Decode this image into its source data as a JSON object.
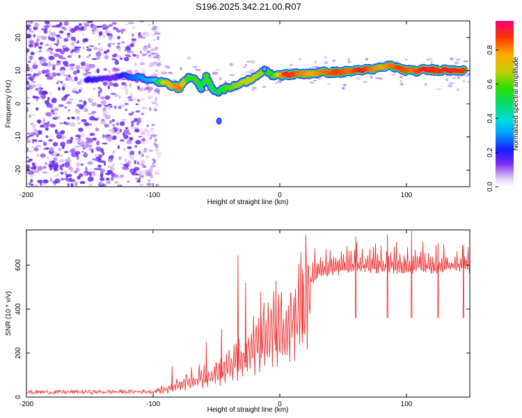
{
  "title": "S196.2025.342.21.00.R07",
  "chart_data": [
    {
      "type": "heatmap",
      "xlabel": "Height of straight line (km)",
      "ylabel": "Frequency (Hz)",
      "xlim": [
        -200,
        150
      ],
      "ylim": [
        -25,
        25
      ],
      "xticks": [
        -200,
        -100,
        0,
        100
      ],
      "xtick_labels": [
        "-200",
        "-100",
        "0",
        "100"
      ],
      "yticks": [
        -20,
        -10,
        0,
        10,
        20
      ],
      "ytick_labels": [
        "-20",
        "-10",
        "0",
        "10",
        "20"
      ],
      "colorbar": {
        "label": "Normalized spectral amplitude",
        "range": [
          0,
          0.97
        ],
        "ticks": [
          0.0,
          0.2,
          0.4,
          0.6,
          0.8
        ],
        "tick_labels": [
          "0.0",
          "0.2",
          "0.4",
          "0.6",
          "0.8"
        ]
      },
      "ridge": [
        {
          "x": -152,
          "f": 7.5,
          "a": 0.22
        },
        {
          "x": -145,
          "f": 7.2,
          "a": 0.2
        },
        {
          "x": -130,
          "f": 8.0,
          "a": 0.15
        },
        {
          "x": -122,
          "f": 8.5,
          "a": 0.25
        },
        {
          "x": -112,
          "f": 8.0,
          "a": 0.3
        },
        {
          "x": -100,
          "f": 7.0,
          "a": 0.35
        },
        {
          "x": -92,
          "f": 6.5,
          "a": 0.7
        },
        {
          "x": -85,
          "f": 5.5,
          "a": 0.8
        },
        {
          "x": -79,
          "f": 4.8,
          "a": 0.85
        },
        {
          "x": -72,
          "f": 8.0,
          "a": 0.55
        },
        {
          "x": -66,
          "f": 7.0,
          "a": 0.6
        },
        {
          "x": -62,
          "f": 4.5,
          "a": 0.5
        },
        {
          "x": -58,
          "f": 8.5,
          "a": 0.6
        },
        {
          "x": -54,
          "f": 5.0,
          "a": 0.55
        },
        {
          "x": -50,
          "f": 3.5,
          "a": 0.5
        },
        {
          "x": -44,
          "f": 4.5,
          "a": 0.6
        },
        {
          "x": -36,
          "f": 5.5,
          "a": 0.65
        },
        {
          "x": -28,
          "f": 6.5,
          "a": 0.7
        },
        {
          "x": -20,
          "f": 8.0,
          "a": 0.7
        },
        {
          "x": -12,
          "f": 10.0,
          "a": 0.65
        },
        {
          "x": -6,
          "f": 8.5,
          "a": 0.55
        },
        {
          "x": 5,
          "f": 8.8,
          "a": 0.95
        },
        {
          "x": 15,
          "f": 9.0,
          "a": 0.85
        },
        {
          "x": 25,
          "f": 9.2,
          "a": 0.8
        },
        {
          "x": 35,
          "f": 9.5,
          "a": 0.85
        },
        {
          "x": 45,
          "f": 9.5,
          "a": 0.9
        },
        {
          "x": 55,
          "f": 9.8,
          "a": 0.85
        },
        {
          "x": 65,
          "f": 10.3,
          "a": 0.95
        },
        {
          "x": 72,
          "f": 10.2,
          "a": 0.85
        },
        {
          "x": 80,
          "f": 11.0,
          "a": 0.8
        },
        {
          "x": 88,
          "f": 11.5,
          "a": 0.85
        },
        {
          "x": 95,
          "f": 10.5,
          "a": 0.9
        },
        {
          "x": 105,
          "f": 9.8,
          "a": 0.85
        },
        {
          "x": 115,
          "f": 10.3,
          "a": 0.95
        },
        {
          "x": 125,
          "f": 10.2,
          "a": 0.9
        },
        {
          "x": 135,
          "f": 10.2,
          "a": 0.95
        },
        {
          "x": 145,
          "f": 10.2,
          "a": 0.9
        }
      ],
      "spots": [
        {
          "x": -48,
          "f": -5.2,
          "a": 0.3
        },
        {
          "x": -12,
          "f": 10.5,
          "a": 0.4
        }
      ]
    },
    {
      "type": "line",
      "xlabel": "Height of straight line (km)",
      "ylabel": "SNR (10 * v/v)",
      "xlim": [
        -200,
        150
      ],
      "ylim": [
        0,
        760
      ],
      "xticks": [
        -200,
        -100,
        0,
        100
      ],
      "xtick_labels": [
        "-200",
        "-100",
        "0",
        "100"
      ],
      "yticks": [
        0,
        200,
        400,
        600
      ],
      "ytick_labels": [
        "0",
        "200",
        "400",
        "600"
      ],
      "color": "#ee3333",
      "baseline": [
        {
          "x": -200,
          "y": 22
        },
        {
          "x": -100,
          "y": 25
        },
        {
          "x": -90,
          "y": 40
        },
        {
          "x": -80,
          "y": 70
        },
        {
          "x": -70,
          "y": 90
        },
        {
          "x": -60,
          "y": 110
        },
        {
          "x": -50,
          "y": 130
        },
        {
          "x": -40,
          "y": 160
        },
        {
          "x": -30,
          "y": 210
        },
        {
          "x": -20,
          "y": 260
        },
        {
          "x": -10,
          "y": 330
        },
        {
          "x": 0,
          "y": 360
        },
        {
          "x": 10,
          "y": 420
        },
        {
          "x": 20,
          "y": 500
        },
        {
          "x": 30,
          "y": 570
        },
        {
          "x": 40,
          "y": 590
        },
        {
          "x": 60,
          "y": 600
        },
        {
          "x": 100,
          "y": 600
        },
        {
          "x": 150,
          "y": 600
        }
      ],
      "peaks": [
        {
          "x": -85,
          "y": 140
        },
        {
          "x": -58,
          "y": 250
        },
        {
          "x": -46,
          "y": 310
        },
        {
          "x": -33,
          "y": 645
        },
        {
          "x": -27,
          "y": 520
        },
        {
          "x": -15,
          "y": 480
        },
        {
          "x": -3,
          "y": 530
        },
        {
          "x": 18,
          "y": 580
        },
        {
          "x": 60,
          "y": 730
        },
        {
          "x": 85,
          "y": 740
        },
        {
          "x": 104,
          "y": 755
        },
        {
          "x": 125,
          "y": 700
        },
        {
          "x": 145,
          "y": 690
        }
      ]
    }
  ]
}
